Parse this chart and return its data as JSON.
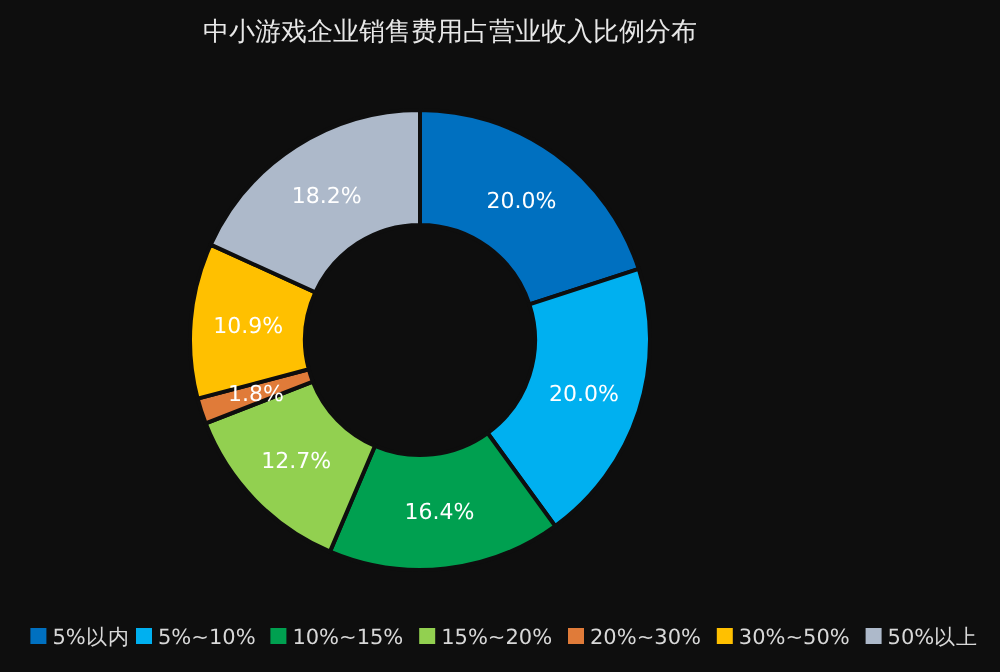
{
  "chart_data": {
    "type": "donut",
    "title": "中小游戏企业销售费用占营业收入比例分布",
    "categories": [
      "5%以内",
      "5%~10%",
      "10%~15%",
      "15%~20%",
      "20%~30%",
      "30%~50%",
      "50%以上"
    ],
    "values": [
      20.0,
      20.0,
      16.4,
      12.7,
      1.8,
      10.9,
      18.2
    ],
    "value_labels": [
      "20.0%",
      "20.0%",
      "16.4%",
      "12.7%",
      "1.8%",
      "10.9%",
      "18.2%"
    ],
    "colors": [
      "#0070c0",
      "#00b0f0",
      "#00a050",
      "#92d050",
      "#e07b39",
      "#ffc000",
      "#adb9ca"
    ],
    "legend": "bottom"
  }
}
